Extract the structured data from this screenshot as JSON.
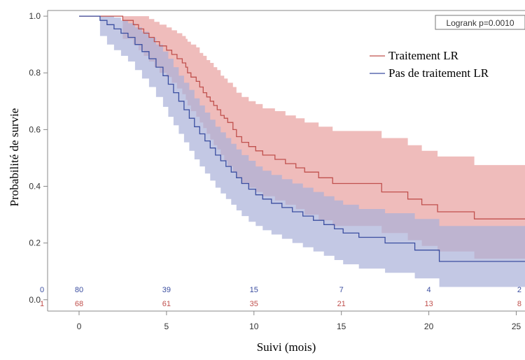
{
  "chart_data": {
    "type": "line",
    "subtype": "kaplan-meier step curves with confidence bands",
    "title": "",
    "xlabel": "Suivi (mois)",
    "ylabel": "Probabilité de survie",
    "xlim": [
      -1.8,
      25.5
    ],
    "ylim": [
      -0.04,
      1.02
    ],
    "x_ticks": [
      "0",
      "5",
      "10",
      "15",
      "20",
      "25"
    ],
    "y_ticks": [
      "0.0",
      "0.2",
      "0.4",
      "0.6",
      "0.8",
      "1.0"
    ],
    "grid": false,
    "annotation": "Logrank p=0.0010",
    "legend_position": "top-right",
    "series": [
      {
        "name": "Traitement  LR",
        "color": "#c0504d",
        "band_color": "#e8a09e",
        "x": [
          0,
          1.2,
          2.5,
          3.1,
          3.4,
          3.7,
          4.0,
          4.3,
          4.6,
          5.0,
          5.3,
          5.6,
          5.9,
          6.1,
          6.2,
          6.4,
          6.7,
          6.9,
          7.1,
          7.3,
          7.5,
          7.7,
          7.9,
          8.1,
          8.3,
          8.5,
          8.8,
          9.0,
          9.3,
          9.7,
          10.1,
          10.5,
          11.2,
          11.8,
          12.4,
          12.9,
          13.7,
          14.5,
          17.3,
          18.8,
          19.6,
          20.5,
          22.6,
          25.5
        ],
        "y": [
          1.0,
          1.0,
          0.985,
          0.97,
          0.955,
          0.94,
          0.925,
          0.91,
          0.895,
          0.88,
          0.865,
          0.85,
          0.835,
          0.82,
          0.8,
          0.785,
          0.77,
          0.75,
          0.73,
          0.715,
          0.7,
          0.685,
          0.67,
          0.65,
          0.64,
          0.625,
          0.6,
          0.575,
          0.555,
          0.54,
          0.525,
          0.51,
          0.495,
          0.48,
          0.465,
          0.45,
          0.43,
          0.41,
          0.38,
          0.355,
          0.335,
          0.31,
          0.285,
          0.285
        ],
        "upper": [
          1.0,
          1.0,
          1.0,
          1.0,
          1.0,
          1.0,
          0.99,
          0.98,
          0.97,
          0.96,
          0.95,
          0.94,
          0.93,
          0.92,
          0.91,
          0.9,
          0.89,
          0.87,
          0.86,
          0.845,
          0.835,
          0.82,
          0.81,
          0.79,
          0.78,
          0.765,
          0.75,
          0.73,
          0.715,
          0.7,
          0.69,
          0.675,
          0.665,
          0.65,
          0.64,
          0.625,
          0.61,
          0.595,
          0.57,
          0.545,
          0.525,
          0.505,
          0.475,
          0.475
        ],
        "lower": [
          1.0,
          1.0,
          0.92,
          0.9,
          0.88,
          0.86,
          0.84,
          0.82,
          0.8,
          0.785,
          0.765,
          0.745,
          0.725,
          0.705,
          0.685,
          0.665,
          0.645,
          0.625,
          0.605,
          0.585,
          0.565,
          0.545,
          0.53,
          0.51,
          0.49,
          0.47,
          0.45,
          0.43,
          0.41,
          0.395,
          0.38,
          0.365,
          0.35,
          0.335,
          0.32,
          0.3,
          0.28,
          0.26,
          0.235,
          0.21,
          0.19,
          0.17,
          0.145,
          0.145
        ]
      },
      {
        "name": "Pas de traitement  LR",
        "color": "#3b4ea0",
        "band_color": "#a9b1d8",
        "x": [
          0,
          1.2,
          1.6,
          2.0,
          2.4,
          2.8,
          3.2,
          3.6,
          4.0,
          4.4,
          4.8,
          5.1,
          5.4,
          5.7,
          6.0,
          6.3,
          6.6,
          6.9,
          7.2,
          7.5,
          7.8,
          8.1,
          8.4,
          8.7,
          9.0,
          9.3,
          9.7,
          10.1,
          10.5,
          11.0,
          11.6,
          12.2,
          12.8,
          13.4,
          14.0,
          14.6,
          15.1,
          16.0,
          17.5,
          19.2,
          20.6,
          25.5
        ],
        "y": [
          1.0,
          0.985,
          0.97,
          0.955,
          0.94,
          0.925,
          0.9,
          0.875,
          0.85,
          0.82,
          0.79,
          0.76,
          0.73,
          0.7,
          0.67,
          0.64,
          0.61,
          0.585,
          0.56,
          0.535,
          0.51,
          0.49,
          0.47,
          0.45,
          0.43,
          0.41,
          0.39,
          0.37,
          0.355,
          0.34,
          0.325,
          0.31,
          0.295,
          0.28,
          0.265,
          0.25,
          0.235,
          0.22,
          0.2,
          0.175,
          0.135,
          0.135
        ],
        "upper": [
          1.0,
          1.0,
          1.0,
          0.995,
          0.985,
          0.975,
          0.96,
          0.945,
          0.925,
          0.9,
          0.875,
          0.85,
          0.82,
          0.79,
          0.765,
          0.74,
          0.71,
          0.685,
          0.66,
          0.635,
          0.61,
          0.59,
          0.57,
          0.55,
          0.53,
          0.51,
          0.49,
          0.47,
          0.455,
          0.44,
          0.425,
          0.41,
          0.395,
          0.38,
          0.365,
          0.35,
          0.335,
          0.32,
          0.305,
          0.285,
          0.26,
          0.26
        ],
        "lower": [
          1.0,
          0.93,
          0.9,
          0.88,
          0.86,
          0.84,
          0.81,
          0.78,
          0.75,
          0.715,
          0.68,
          0.645,
          0.615,
          0.585,
          0.555,
          0.525,
          0.495,
          0.47,
          0.445,
          0.42,
          0.395,
          0.375,
          0.355,
          0.335,
          0.315,
          0.295,
          0.275,
          0.26,
          0.245,
          0.23,
          0.215,
          0.2,
          0.185,
          0.17,
          0.155,
          0.14,
          0.125,
          0.11,
          0.095,
          0.075,
          0.045,
          0.045
        ]
      }
    ],
    "at_risk": {
      "times": [
        0,
        5,
        10,
        15,
        20,
        25
      ],
      "rows": [
        {
          "label": "0",
          "color": "#3b4ea0",
          "counts": [
            "80",
            "39",
            "15",
            "7",
            "4",
            "2"
          ]
        },
        {
          "label": "1",
          "color": "#c0504d",
          "counts": [
            "68",
            "61",
            "35",
            "21",
            "13",
            "8"
          ]
        }
      ]
    }
  }
}
